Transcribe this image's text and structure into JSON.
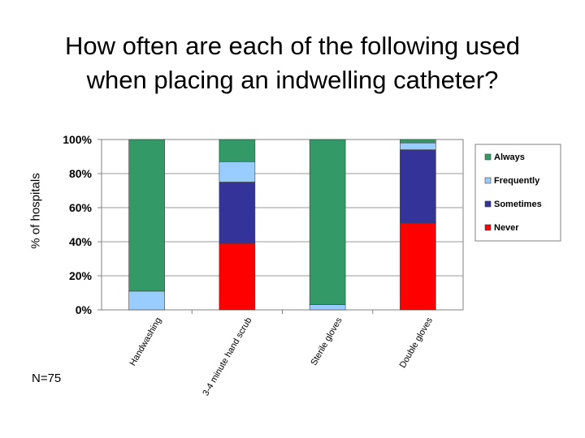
{
  "slide": {
    "title_line1": "How often are each of the following used",
    "title_line2": "when placing an indwelling catheter?",
    "note": "N=75"
  },
  "chart_data": {
    "type": "bar",
    "stacked": true,
    "title": "",
    "xlabel": "",
    "ylabel": "% of hospitals",
    "ylim": [
      0,
      100
    ],
    "y_ticks": [
      "0%",
      "20%",
      "40%",
      "60%",
      "80%",
      "100%"
    ],
    "grid": true,
    "legend_position": "right",
    "categories": [
      "Handwashing",
      "3-4 minute hand scrub",
      "Sterile gloves",
      "Double gloves"
    ],
    "series": [
      {
        "name": "Never",
        "color": "#ff0000",
        "values": [
          0,
          39,
          0,
          51
        ]
      },
      {
        "name": "Sometimes",
        "color": "#333399",
        "values": [
          0,
          36,
          0,
          43
        ]
      },
      {
        "name": "Frequently",
        "color": "#99ccff",
        "values": [
          11,
          12,
          3,
          4
        ]
      },
      {
        "name": "Always",
        "color": "#339966",
        "values": [
          89,
          13,
          97,
          2
        ]
      }
    ],
    "legend_order": [
      "Always",
      "Frequently",
      "Sometimes",
      "Never"
    ]
  }
}
